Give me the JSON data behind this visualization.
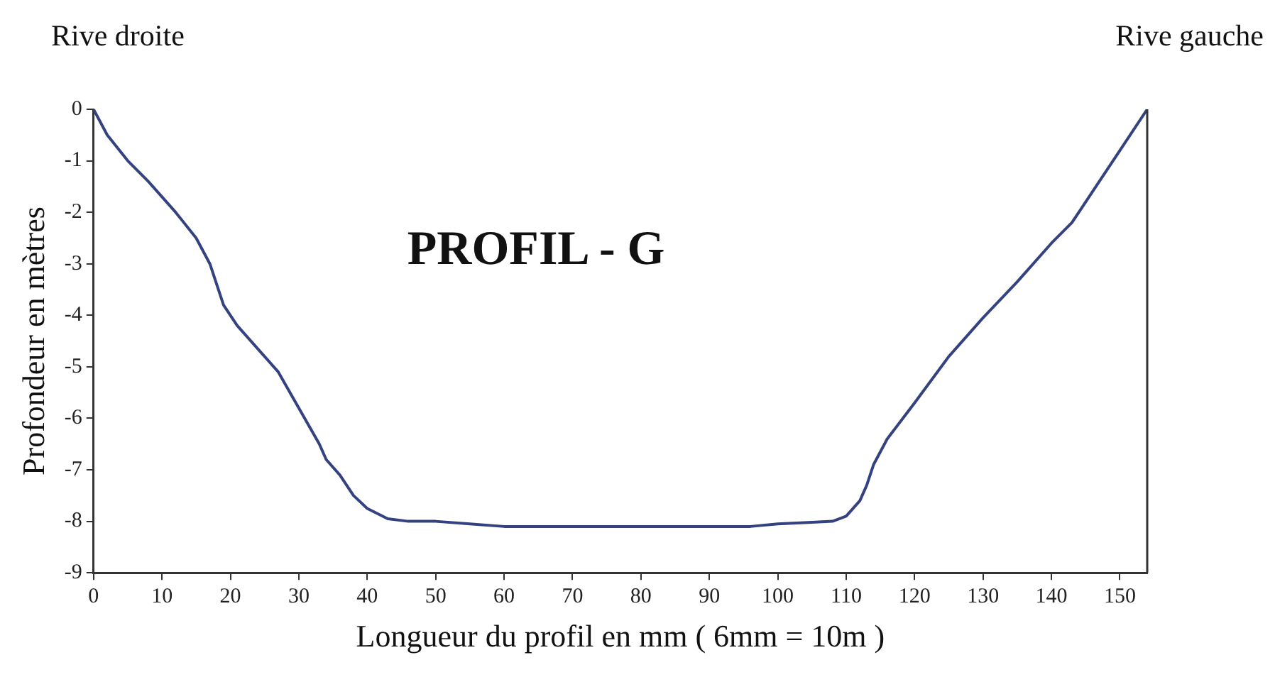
{
  "chart_data": {
    "type": "line",
    "title": "PROFIL - G",
    "xlabel": "Longueur du profil en mm ( 6mm = 10m )",
    "ylabel": "Profondeur en mètres",
    "annotations": [
      "Rive droite",
      "Rive gauche"
    ],
    "series": [
      {
        "color": "#34437f",
        "x": [
          0,
          2,
          5,
          8,
          12,
          15,
          17,
          19,
          21,
          25,
          27,
          30,
          33,
          34,
          36,
          38,
          40,
          43,
          46,
          50,
          55,
          60,
          70,
          80,
          90,
          96,
          100,
          105,
          108,
          110,
          112,
          113,
          114,
          116,
          120,
          125,
          130,
          135,
          140,
          143,
          146,
          150,
          154
        ],
        "values": [
          0,
          -0.5,
          -1,
          -1.4,
          -2,
          -2.5,
          -3,
          -3.8,
          -4.2,
          -4.8,
          -5.1,
          -5.8,
          -6.5,
          -6.8,
          -7.1,
          -7.5,
          -7.75,
          -7.95,
          -8,
          -8,
          -8.05,
          -8.1,
          -8.1,
          -8.1,
          -8.1,
          -8.1,
          -8.05,
          -8.02,
          -8,
          -7.9,
          -7.6,
          -7.3,
          -6.9,
          -6.4,
          -5.7,
          -4.8,
          -4.05,
          -3.35,
          -2.6,
          -2.2,
          -1.6,
          -0.8,
          0
        ]
      }
    ],
    "xlim": [
      0,
      154
    ],
    "xticks": [
      0,
      10,
      20,
      30,
      40,
      50,
      60,
      70,
      80,
      90,
      100,
      110,
      120,
      130,
      140,
      150
    ],
    "ylim": [
      -9,
      0
    ],
    "yticks": [
      0,
      -1,
      -2,
      -3,
      -4,
      -5,
      -6,
      -7,
      -8,
      -9
    ],
    "grid": false,
    "legend": false,
    "marker": "none",
    "line_style": "solid"
  }
}
